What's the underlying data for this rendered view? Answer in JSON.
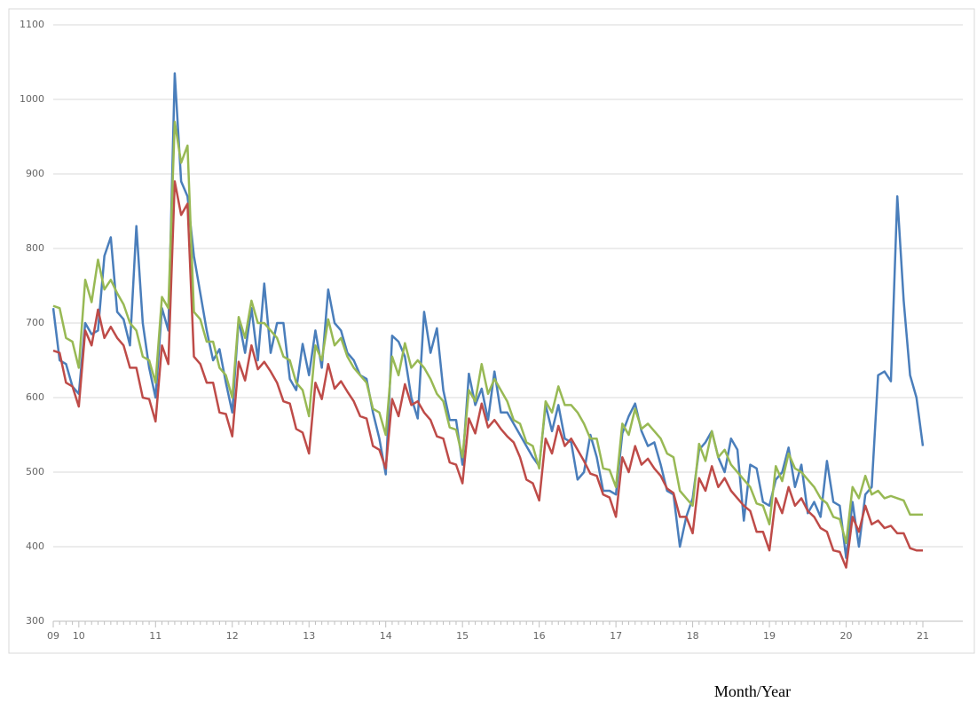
{
  "chart_data": {
    "type": "line",
    "x_label": "Month/Year",
    "categories": [
      "09",
      null,
      null,
      null,
      "10",
      null,
      null,
      null,
      null,
      null,
      null,
      null,
      null,
      null,
      null,
      null,
      "11",
      null,
      null,
      null,
      null,
      null,
      null,
      null,
      null,
      null,
      null,
      null,
      "12",
      null,
      null,
      null,
      null,
      null,
      null,
      null,
      null,
      null,
      null,
      null,
      "13",
      null,
      null,
      null,
      null,
      null,
      null,
      null,
      null,
      null,
      null,
      null,
      "14",
      null,
      null,
      null,
      null,
      null,
      null,
      null,
      null,
      null,
      null,
      null,
      "15",
      null,
      null,
      null,
      null,
      null,
      null,
      null,
      null,
      null,
      null,
      null,
      "16",
      null,
      null,
      null,
      null,
      null,
      null,
      null,
      null,
      null,
      null,
      null,
      "17",
      null,
      null,
      null,
      null,
      null,
      null,
      null,
      null,
      null,
      null,
      null,
      "18",
      null,
      null,
      null,
      null,
      null,
      null,
      null,
      null,
      null,
      null,
      null,
      "19",
      null,
      null,
      null,
      null,
      null,
      null,
      null,
      null,
      null,
      null,
      null,
      "20",
      null,
      null,
      null,
      null,
      null,
      null,
      null,
      null,
      null,
      null,
      null,
      "21"
    ],
    "series": [
      {
        "color": "#4a7ebb",
        "values": [
          720,
          650,
          645,
          615,
          605,
          700,
          685,
          690,
          790,
          815,
          715,
          705,
          670,
          830,
          700,
          640,
          600,
          720,
          690,
          1035,
          890,
          870,
          790,
          740,
          690,
          650,
          665,
          620,
          580,
          705,
          660,
          720,
          650,
          753,
          660,
          700,
          700,
          625,
          610,
          672,
          630,
          690,
          640,
          745,
          700,
          690,
          660,
          650,
          630,
          625,
          580,
          545,
          497,
          683,
          675,
          655,
          600,
          572,
          715,
          660,
          693,
          610,
          570,
          570,
          510,
          632,
          590,
          612,
          570,
          635,
          580,
          580,
          565,
          550,
          535,
          520,
          508,
          590,
          555,
          590,
          545,
          540,
          490,
          500,
          550,
          520,
          475,
          475,
          470,
          552,
          575,
          592,
          555,
          535,
          540,
          510,
          475,
          470,
          400,
          440,
          465,
          530,
          540,
          555,
          520,
          500,
          545,
          530,
          435,
          510,
          505,
          460,
          455,
          490,
          500,
          533,
          480,
          510,
          445,
          460,
          440,
          515,
          460,
          455,
          385,
          460,
          400,
          470,
          480,
          630,
          635,
          622,
          870,
          730,
          630,
          600,
          535
        ]
      },
      {
        "color": "#be4b48",
        "values": [
          663,
          660,
          620,
          615,
          588,
          690,
          670,
          718,
          680,
          695,
          680,
          670,
          640,
          640,
          600,
          598,
          568,
          670,
          645,
          890,
          845,
          860,
          655,
          645,
          620,
          620,
          580,
          578,
          548,
          648,
          623,
          670,
          638,
          648,
          635,
          620,
          595,
          592,
          558,
          553,
          525,
          620,
          598,
          645,
          612,
          622,
          608,
          595,
          575,
          572,
          535,
          530,
          505,
          598,
          575,
          618,
          590,
          595,
          580,
          570,
          548,
          545,
          513,
          510,
          485,
          572,
          552,
          592,
          560,
          570,
          558,
          548,
          540,
          520,
          490,
          485,
          462,
          545,
          525,
          562,
          535,
          545,
          530,
          515,
          498,
          495,
          470,
          466,
          440,
          520,
          500,
          535,
          510,
          518,
          505,
          495,
          478,
          472,
          440,
          440,
          418,
          492,
          475,
          508,
          480,
          492,
          475,
          465,
          455,
          448,
          420,
          420,
          395,
          465,
          445,
          480,
          455,
          465,
          448,
          440,
          425,
          420,
          395,
          393,
          372,
          440,
          420,
          455,
          430,
          435,
          425,
          428,
          418,
          418,
          398,
          395,
          395
        ]
      },
      {
        "color": "#98b954",
        "values": [
          723,
          720,
          680,
          675,
          640,
          758,
          728,
          785,
          745,
          758,
          740,
          725,
          700,
          690,
          655,
          650,
          620,
          735,
          720,
          970,
          915,
          938,
          715,
          705,
          675,
          675,
          640,
          630,
          600,
          708,
          680,
          730,
          700,
          700,
          690,
          680,
          655,
          650,
          620,
          610,
          575,
          670,
          650,
          705,
          670,
          680,
          655,
          640,
          630,
          620,
          585,
          580,
          550,
          655,
          630,
          673,
          640,
          650,
          640,
          625,
          605,
          595,
          560,
          557,
          520,
          610,
          595,
          645,
          605,
          625,
          610,
          595,
          570,
          565,
          540,
          535,
          505,
          595,
          580,
          615,
          590,
          590,
          580,
          565,
          545,
          545,
          505,
          503,
          480,
          565,
          550,
          585,
          558,
          565,
          555,
          545,
          525,
          520,
          475,
          465,
          455,
          538,
          515,
          555,
          520,
          530,
          510,
          500,
          490,
          480,
          458,
          455,
          430,
          508,
          488,
          525,
          505,
          500,
          490,
          480,
          465,
          458,
          440,
          437,
          405,
          480,
          465,
          495,
          470,
          475,
          465,
          468,
          465,
          462,
          443,
          443,
          443
        ]
      }
    ],
    "ylim": [
      300,
      1100
    ],
    "yticks": [
      300,
      400,
      500,
      600,
      700,
      800,
      900,
      1000,
      1100
    ],
    "grid": true
  }
}
